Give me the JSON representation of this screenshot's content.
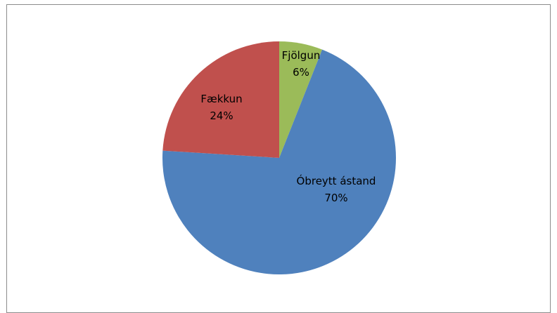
{
  "chart_data": {
    "type": "pie",
    "title": "",
    "slices": [
      {
        "name": "Fjölgun",
        "value": 6,
        "pct_label": "6%",
        "color": "#9BBB59"
      },
      {
        "name": "Óbreytt ástand",
        "value": 70,
        "pct_label": "70%",
        "color": "#4F81BD"
      },
      {
        "name": "Fækkun",
        "value": 24,
        "pct_label": "24%",
        "color": "#C0504D"
      }
    ],
    "start_angle_deg": 0,
    "direction": "clockwise",
    "legend": "none",
    "labels_inside": true
  }
}
